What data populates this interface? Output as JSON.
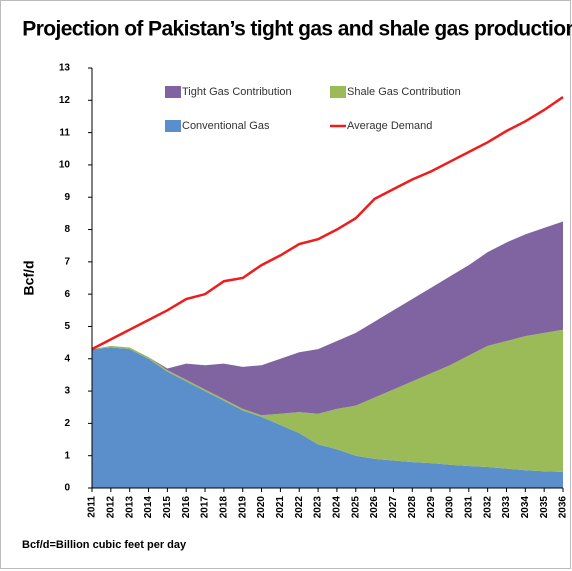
{
  "chart_data": {
    "type": "area",
    "title": "Projection of Pakistan’s tight gas and shale gas production",
    "y_label": "Bcf/d",
    "note": "Bcf/d=Billion cubic feet per day",
    "categories": [
      "2011",
      "2012",
      "2013",
      "2014",
      "2015",
      "2016",
      "2017",
      "2018",
      "2019",
      "2020",
      "2021",
      "2022",
      "2023",
      "2024",
      "2025",
      "2026",
      "2027",
      "2028",
      "2029",
      "2030",
      "2031",
      "2032",
      "2033",
      "2034",
      "2035",
      "2036"
    ],
    "series": [
      {
        "name": "Conventional Gas",
        "color": "#5b8fcc",
        "values": [
          4.3,
          4.35,
          4.3,
          4.0,
          3.6,
          3.3,
          3.0,
          2.7,
          2.4,
          2.2,
          1.95,
          1.7,
          1.35,
          1.2,
          1.0,
          0.9,
          0.85,
          0.8,
          0.77,
          0.72,
          0.68,
          0.65,
          0.6,
          0.55,
          0.52,
          0.5
        ]
      },
      {
        "name": "Shale Gas Contribution",
        "color": "#9bbb59",
        "values": [
          0,
          0.05,
          0.05,
          0.05,
          0.05,
          0.05,
          0.05,
          0.05,
          0.05,
          0.05,
          0.35,
          0.65,
          0.95,
          1.25,
          1.55,
          1.9,
          2.2,
          2.5,
          2.78,
          3.08,
          3.42,
          3.75,
          3.95,
          4.15,
          4.28,
          4.4
        ]
      },
      {
        "name": "Tight Gas Contribution",
        "color": "#8064a2",
        "values": [
          0,
          0,
          0,
          0,
          0.05,
          0.5,
          0.75,
          1.1,
          1.3,
          1.55,
          1.7,
          1.85,
          2.0,
          2.1,
          2.25,
          2.35,
          2.45,
          2.55,
          2.65,
          2.75,
          2.8,
          2.9,
          3.05,
          3.15,
          3.25,
          3.35
        ]
      },
      {
        "name": "Average Demand",
        "color": "#ee1c1c",
        "type": "line",
        "values": [
          4.3,
          4.6,
          4.9,
          5.2,
          5.5,
          5.85,
          6.0,
          6.4,
          6.5,
          6.9,
          7.2,
          7.55,
          7.7,
          8.0,
          8.35,
          8.95,
          9.25,
          9.55,
          9.8,
          10.1,
          10.4,
          10.7,
          11.05,
          11.35,
          11.7,
          12.1
        ]
      }
    ],
    "ylim": [
      0,
      13
    ],
    "yticks": [
      0,
      1,
      2,
      3,
      4,
      5,
      6,
      7,
      8,
      9,
      10,
      11,
      12,
      13
    ]
  }
}
